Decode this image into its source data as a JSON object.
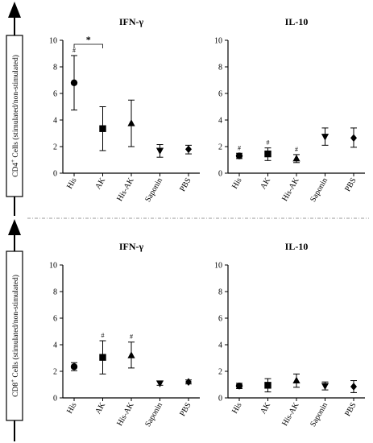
{
  "rows": [
    {
      "ylabel_main": "CD4",
      "ylabel_sup": "+",
      "ylabel_rest": " Cells (stimulated/non-stimulated)"
    },
    {
      "ylabel_main": "CD8",
      "ylabel_sup": "+",
      "ylabel_rest": " Cells (stimulated/non-stimulated)"
    }
  ],
  "chart_data": [
    {
      "type": "scatter",
      "title": "IFN-γ",
      "ylim": [
        0,
        10
      ],
      "yticks": [
        "0",
        "2",
        "4",
        "6",
        "8",
        "10"
      ],
      "categories": [
        "His",
        "AK",
        "His-AK",
        "Saponin",
        "PBS"
      ],
      "markers": [
        "circle",
        "square",
        "triangle-up",
        "triangle-down",
        "diamond"
      ],
      "values": [
        6.8,
        3.35,
        3.75,
        1.7,
        1.8
      ],
      "error_low": [
        4.75,
        1.7,
        2.0,
        1.2,
        1.45
      ],
      "error_high": [
        8.85,
        5.0,
        5.5,
        2.15,
        2.1
      ],
      "annotations": [
        "#",
        "",
        "",
        "",
        ""
      ],
      "bracket": {
        "from": "His",
        "to": "AK",
        "label": "*"
      }
    },
    {
      "type": "scatter",
      "title": "IL-10",
      "ylim": [
        0,
        10
      ],
      "yticks": [
        "0",
        "2",
        "4",
        "6",
        "8",
        "10"
      ],
      "categories": [
        "His",
        "AK",
        "His-AK",
        "Saponin",
        "PBS"
      ],
      "markers": [
        "circle",
        "square",
        "triangle-up",
        "triangle-down",
        "diamond"
      ],
      "values": [
        1.3,
        1.45,
        1.1,
        2.75,
        2.65
      ],
      "error_low": [
        1.1,
        0.95,
        0.8,
        2.1,
        1.95
      ],
      "error_high": [
        1.5,
        1.9,
        1.4,
        3.4,
        3.4
      ],
      "annotations": [
        "#",
        "#",
        "#",
        "",
        ""
      ]
    },
    {
      "type": "scatter",
      "title": "IFN-γ",
      "ylim": [
        0,
        10
      ],
      "yticks": [
        "0",
        "2",
        "4",
        "6",
        "8",
        "10"
      ],
      "categories": [
        "His",
        "AK",
        "His-AK",
        "Saponin",
        "PBS"
      ],
      "markers": [
        "circle",
        "square",
        "triangle-up",
        "triangle-down",
        "diamond"
      ],
      "values": [
        2.35,
        3.05,
        3.2,
        1.1,
        1.2
      ],
      "error_low": [
        2.05,
        1.8,
        2.25,
        0.95,
        1.05
      ],
      "error_high": [
        2.65,
        4.3,
        4.2,
        1.25,
        1.35
      ],
      "annotations": [
        "",
        "#",
        "#",
        "",
        ""
      ]
    },
    {
      "type": "scatter",
      "title": "IL-10",
      "ylim": [
        0,
        10
      ],
      "yticks": [
        "0",
        "2",
        "4",
        "6",
        "8",
        "10"
      ],
      "categories": [
        "His",
        "AK",
        "His-AK",
        "Saponin",
        "PBS"
      ],
      "markers": [
        "circle",
        "square",
        "triangle-up",
        "triangle-down",
        "diamond"
      ],
      "values": [
        0.9,
        0.95,
        1.3,
        0.9,
        0.85
      ],
      "error_low": [
        0.7,
        0.45,
        0.8,
        0.6,
        0.4
      ],
      "error_high": [
        1.1,
        1.45,
        1.8,
        1.2,
        1.3
      ],
      "annotations": [
        "",
        "",
        "",
        "",
        ""
      ]
    }
  ]
}
